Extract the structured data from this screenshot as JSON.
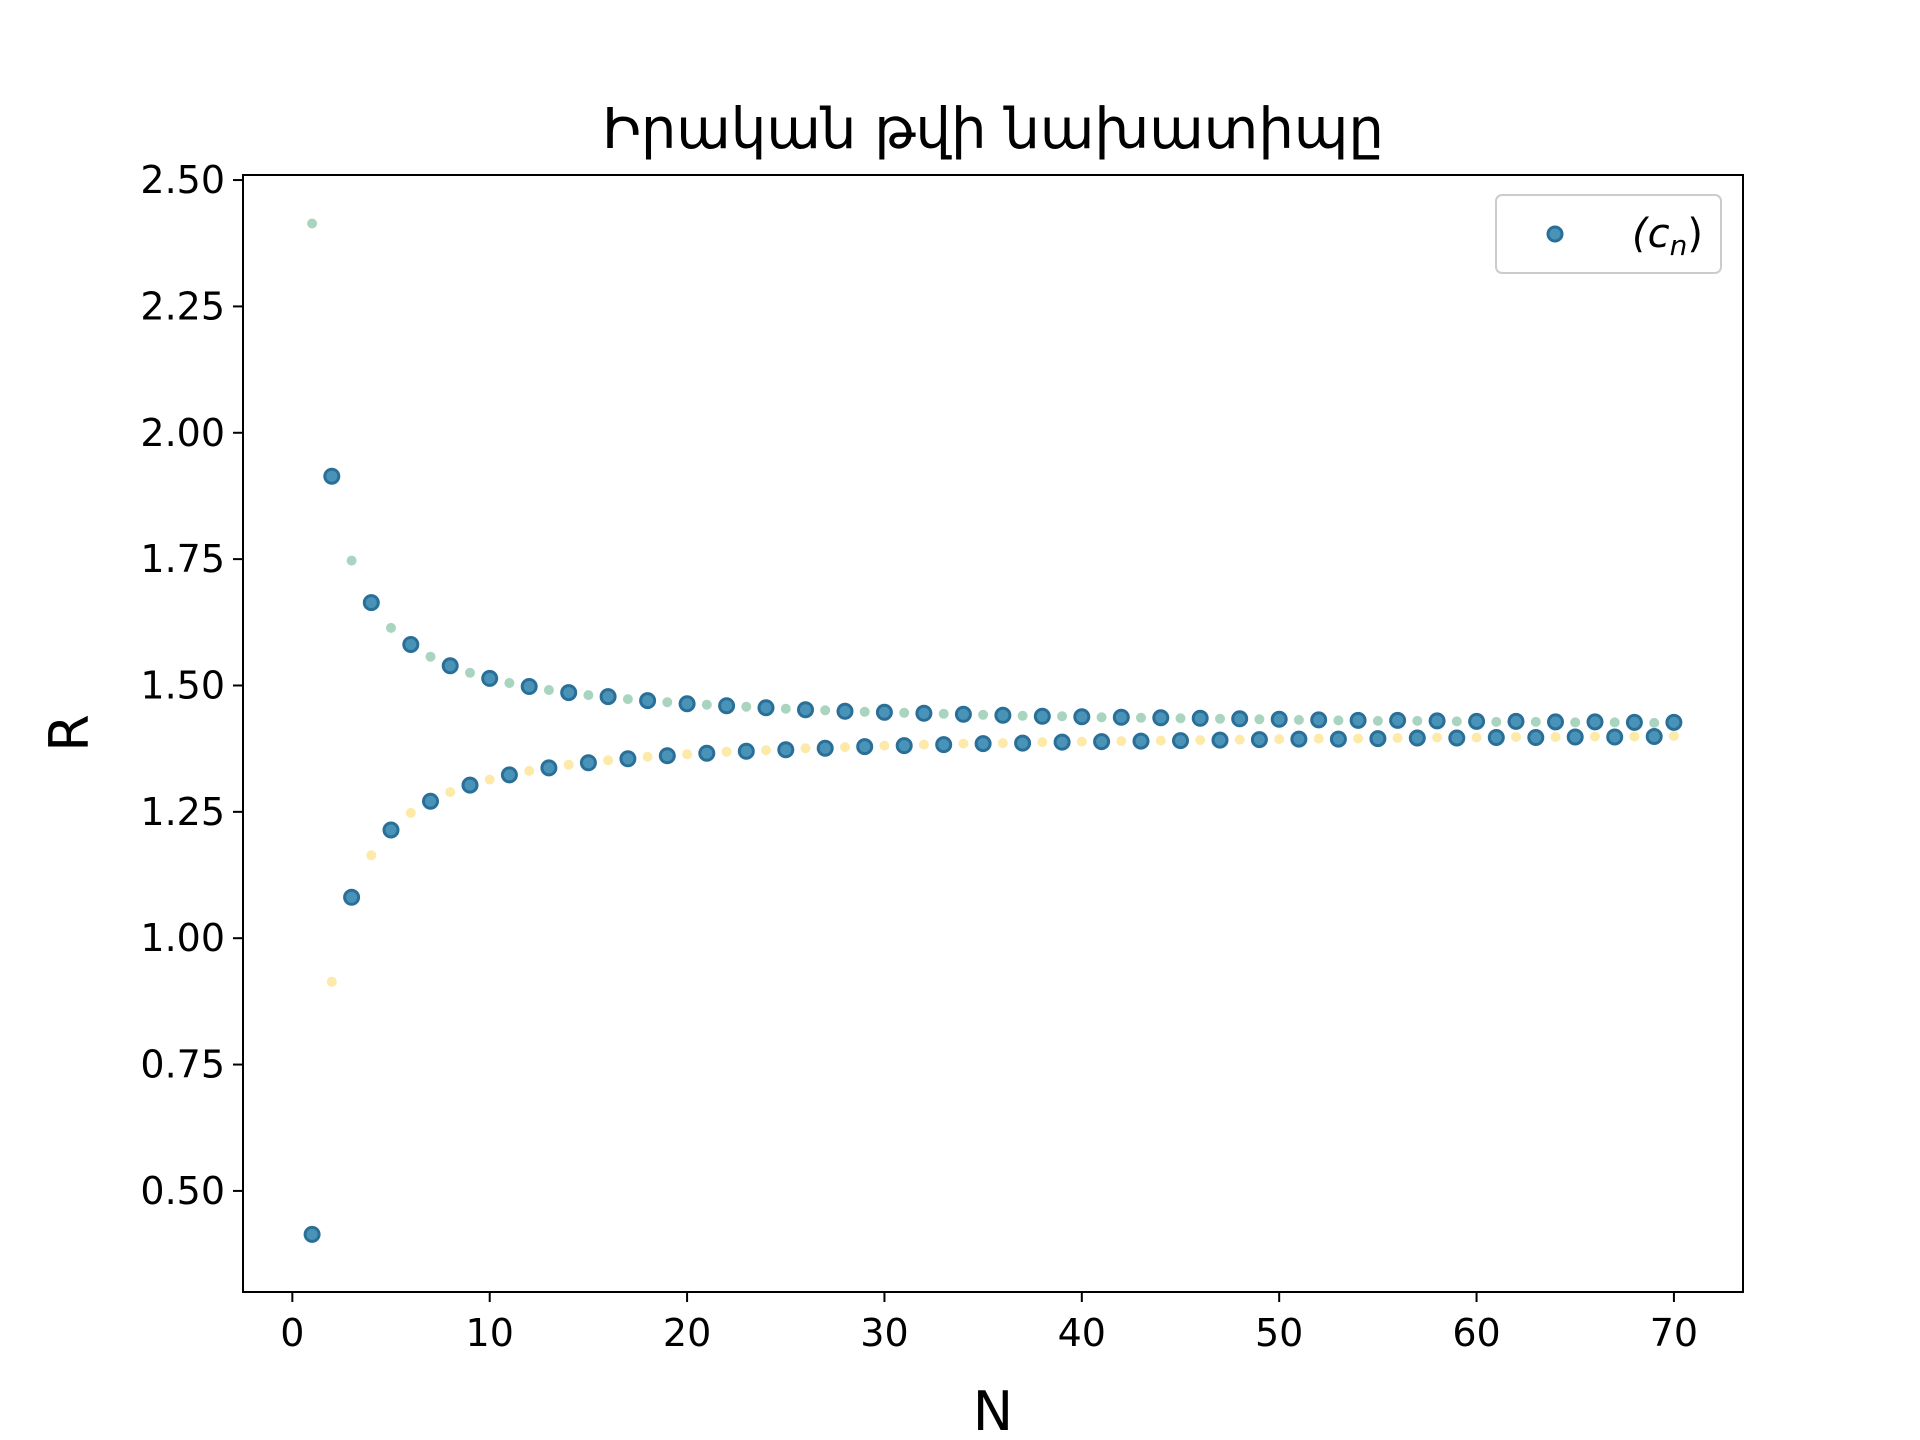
{
  "chart_data": {
    "type": "scatter",
    "title": "Իրական թվի նախատիպը",
    "xlabel": "N",
    "ylabel": "R",
    "xlim": [
      -2.5,
      73.5
    ],
    "ylim": [
      0.3,
      2.51
    ],
    "xticks": [
      0,
      10,
      20,
      30,
      40,
      50,
      60,
      70
    ],
    "xtick_labels": [
      "0",
      "10",
      "20",
      "30",
      "40",
      "50",
      "60",
      "70"
    ],
    "yticks": [
      0.5,
      0.75,
      1.0,
      1.25,
      1.5,
      1.75,
      2.0,
      2.25,
      2.5
    ],
    "ytick_labels": [
      "0.50",
      "0.75",
      "1.00",
      "1.25",
      "1.50",
      "1.75",
      "2.00",
      "2.25",
      "2.50"
    ],
    "grid": false,
    "legend": {
      "position": "top-right",
      "entries": [
        {
          "label_main": "(c",
          "label_sub": "n",
          "label_end": ")"
        }
      ]
    },
    "colors": {
      "main_face": "#4a93b8",
      "main_edge": "#2a6f97",
      "upper": "#a9d4bf",
      "lower": "#fde9a8"
    },
    "series": [
      {
        "role": "main",
        "x": [
          1,
          2,
          3,
          4,
          5,
          6,
          7,
          8,
          9,
          10,
          11,
          12,
          13,
          14,
          15,
          16,
          17,
          18,
          19,
          20,
          21,
          22,
          23,
          24,
          25,
          26,
          27,
          28,
          29,
          30,
          31,
          32,
          33,
          34,
          35,
          36,
          37,
          38,
          39,
          40,
          41,
          42,
          43,
          44,
          45,
          46,
          47,
          48,
          49,
          50,
          51,
          52,
          53,
          54,
          55,
          56,
          57,
          58,
          59,
          60,
          61,
          62,
          63,
          64,
          65,
          66,
          67,
          68,
          69,
          70
        ],
        "y": [
          0.414,
          1.914,
          1.081,
          1.664,
          1.214,
          1.581,
          1.271,
          1.539,
          1.303,
          1.514,
          1.323,
          1.498,
          1.337,
          1.486,
          1.347,
          1.478,
          1.355,
          1.47,
          1.361,
          1.464,
          1.366,
          1.46,
          1.37,
          1.456,
          1.373,
          1.452,
          1.376,
          1.449,
          1.379,
          1.447,
          1.381,
          1.445,
          1.383,
          1.443,
          1.385,
          1.441,
          1.386,
          1.439,
          1.388,
          1.438,
          1.389,
          1.437,
          1.39,
          1.436,
          1.391,
          1.435,
          1.392,
          1.434,
          1.393,
          1.433,
          1.394,
          1.432,
          1.394,
          1.431,
          1.395,
          1.431,
          1.396,
          1.43,
          1.396,
          1.429,
          1.397,
          1.429,
          1.397,
          1.428,
          1.398,
          1.428,
          1.398,
          1.427,
          1.399,
          1.427
        ]
      },
      {
        "role": "upper",
        "x": [
          1,
          2,
          3,
          4,
          5,
          6,
          7,
          8,
          9,
          10,
          11,
          12,
          13,
          14,
          15,
          16,
          17,
          18,
          19,
          20,
          21,
          22,
          23,
          24,
          25,
          26,
          27,
          28,
          29,
          30,
          31,
          32,
          33,
          34,
          35,
          36,
          37,
          38,
          39,
          40,
          41,
          42,
          43,
          44,
          45,
          46,
          47,
          48,
          49,
          50,
          51,
          52,
          53,
          54,
          55,
          56,
          57,
          58,
          59,
          60,
          61,
          62,
          63,
          64,
          65,
          66,
          67,
          68,
          69,
          70
        ],
        "y": [
          2.414,
          1.914,
          1.747,
          1.664,
          1.614,
          1.581,
          1.557,
          1.539,
          1.525,
          1.514,
          1.505,
          1.498,
          1.491,
          1.486,
          1.481,
          1.477,
          1.473,
          1.47,
          1.467,
          1.464,
          1.462,
          1.46,
          1.458,
          1.456,
          1.454,
          1.452,
          1.451,
          1.449,
          1.448,
          1.447,
          1.446,
          1.445,
          1.444,
          1.443,
          1.442,
          1.441,
          1.44,
          1.439,
          1.439,
          1.438,
          1.437,
          1.437,
          1.436,
          1.435,
          1.435,
          1.434,
          1.434,
          1.433,
          1.433,
          1.432,
          1.432,
          1.432,
          1.431,
          1.431,
          1.43,
          1.43,
          1.43,
          1.429,
          1.429,
          1.429,
          1.428,
          1.428,
          1.428,
          1.427,
          1.427,
          1.427,
          1.427,
          1.426,
          1.426,
          1.426
        ]
      },
      {
        "role": "lower",
        "x": [
          1,
          2,
          3,
          4,
          5,
          6,
          7,
          8,
          9,
          10,
          11,
          12,
          13,
          14,
          15,
          16,
          17,
          18,
          19,
          20,
          21,
          22,
          23,
          24,
          25,
          26,
          27,
          28,
          29,
          30,
          31,
          32,
          33,
          34,
          35,
          36,
          37,
          38,
          39,
          40,
          41,
          42,
          43,
          44,
          45,
          46,
          47,
          48,
          49,
          50,
          51,
          52,
          53,
          54,
          55,
          56,
          57,
          58,
          59,
          60,
          61,
          62,
          63,
          64,
          65,
          66,
          67,
          68,
          69,
          70
        ],
        "y": [
          0.414,
          0.914,
          1.081,
          1.164,
          1.214,
          1.248,
          1.271,
          1.289,
          1.303,
          1.314,
          1.323,
          1.331,
          1.337,
          1.343,
          1.347,
          1.352,
          1.355,
          1.359,
          1.361,
          1.364,
          1.366,
          1.369,
          1.37,
          1.372,
          1.374,
          1.376,
          1.377,
          1.378,
          1.379,
          1.381,
          1.382,
          1.383,
          1.384,
          1.385,
          1.385,
          1.386,
          1.387,
          1.388,
          1.388,
          1.389,
          1.389,
          1.39,
          1.391,
          1.391,
          1.392,
          1.392,
          1.392,
          1.393,
          1.393,
          1.394,
          1.394,
          1.395,
          1.395,
          1.395,
          1.396,
          1.396,
          1.396,
          1.397,
          1.397,
          1.397,
          1.397,
          1.398,
          1.398,
          1.398,
          1.398,
          1.399,
          1.399,
          1.399,
          1.399,
          1.4
        ]
      }
    ]
  }
}
